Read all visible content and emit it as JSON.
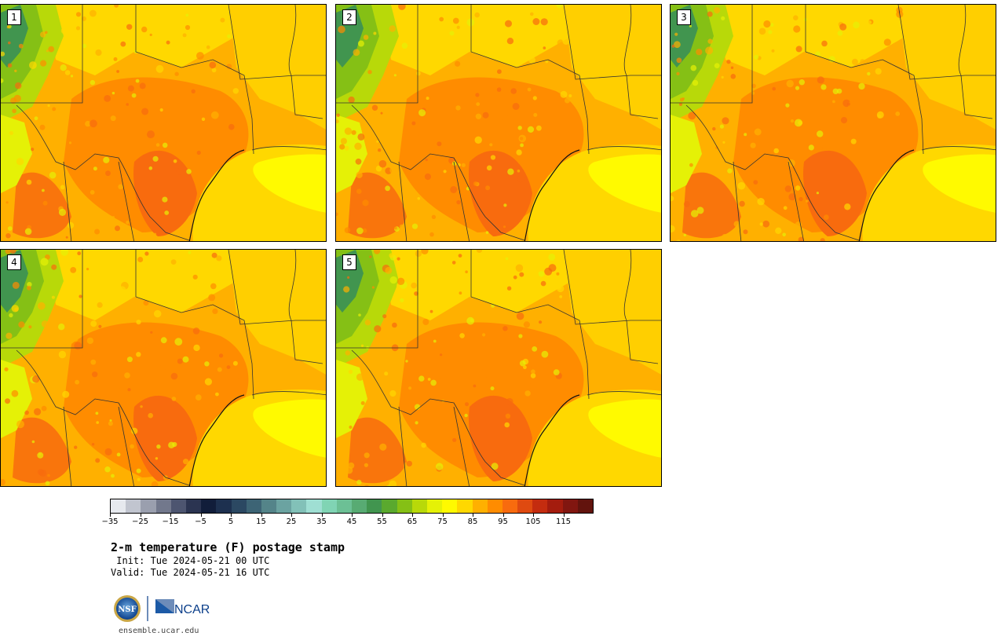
{
  "panels": [
    {
      "label": "1"
    },
    {
      "label": "2"
    },
    {
      "label": "3"
    },
    {
      "label": "4"
    },
    {
      "label": "5"
    }
  ],
  "colorbar": {
    "colors": [
      "#e6e9ee",
      "#c1c5cf",
      "#9a9fae",
      "#72788c",
      "#4d5570",
      "#2b3451",
      "#111d3a",
      "#1d304f",
      "#2b4862",
      "#3d6475",
      "#548489",
      "#6ba3a1",
      "#82c1b8",
      "#9fdfd3",
      "#80d4b4",
      "#6cc095",
      "#58ab73",
      "#41954f",
      "#5aa92e",
      "#85c015",
      "#b8d909",
      "#e5f106",
      "#fffa00",
      "#ffd800",
      "#ffb000",
      "#ff8c00",
      "#f86b0e",
      "#df4a10",
      "#c42c0f",
      "#a41c0e",
      "#811610",
      "#62130d"
    ],
    "tick_labels": [
      "−35",
      "−25",
      "−15",
      "−5",
      "5",
      "15",
      "25",
      "35",
      "45",
      "55",
      "65",
      "75",
      "85",
      "95",
      "105",
      "115"
    ]
  },
  "title": "2-m temperature (F) postage stamp",
  "init_line": " Init: Tue 2024-05-21 00 UTC",
  "valid_line": "Valid: Tue 2024-05-21 16 UTC",
  "logos": {
    "nsf": "NSF",
    "ncar": "NCAR"
  },
  "site": "ensemble.ucar.edu"
}
